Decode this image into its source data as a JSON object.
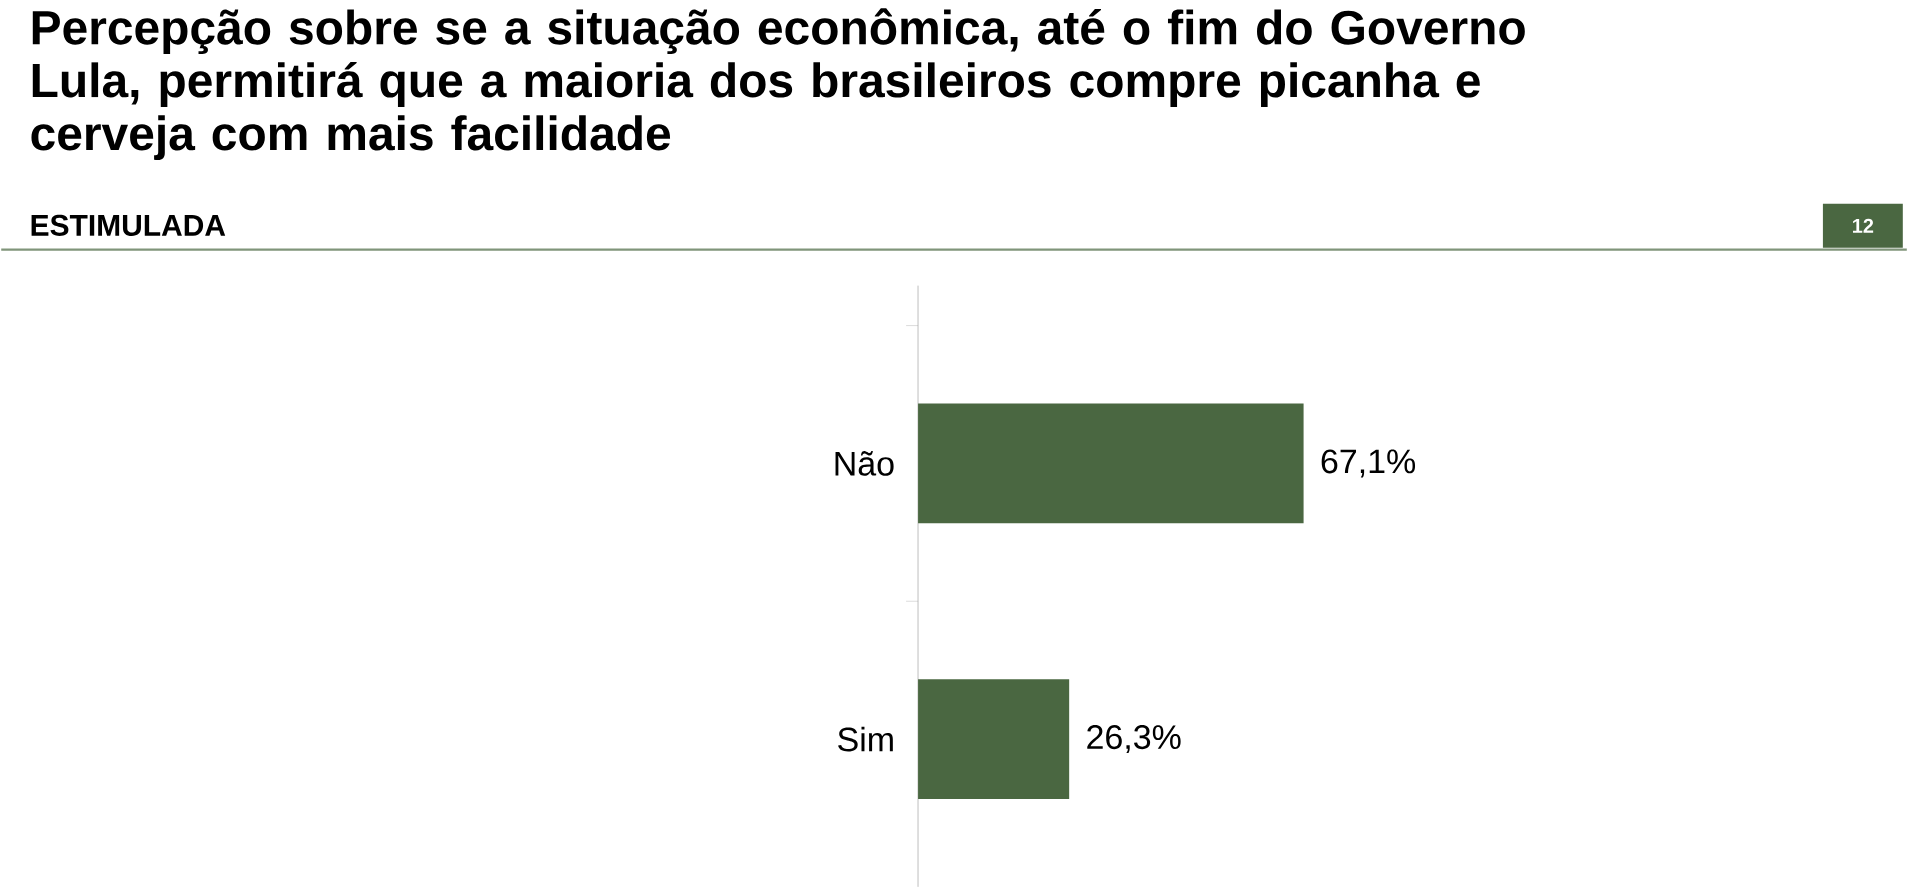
{
  "chart_data": {
    "type": "bar",
    "orientation": "horizontal",
    "title": "Percepção sobre se a situação econômica, até o fim do Governo Lula, permitirá que a maioria dos brasileiros compre picanha e cerveja com mais facilidade",
    "subtitle": "ESTIMULADA",
    "categories": [
      "Não",
      "Sim"
    ],
    "values": [
      67.1,
      26.3
    ],
    "value_labels": [
      "67,1%",
      "26,3%"
    ],
    "color": "#4a6741",
    "annotations": [
      "12"
    ]
  }
}
